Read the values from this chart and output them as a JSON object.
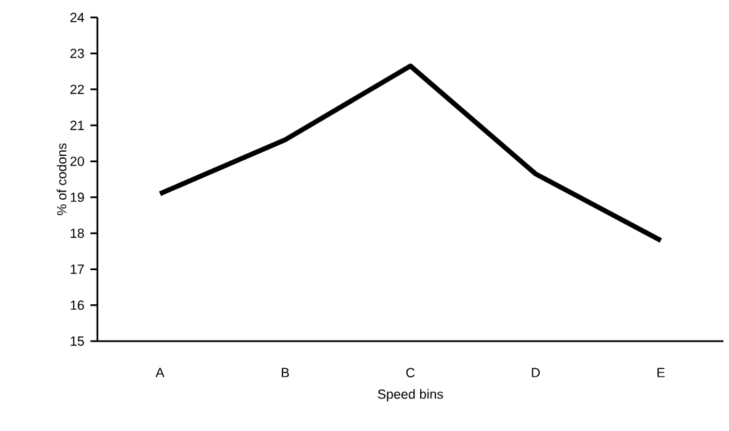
{
  "chart_data": {
    "type": "line",
    "xlabel": "Speed bins",
    "ylabel": "% of codons",
    "categories": [
      "A",
      "B",
      "C",
      "D",
      "E"
    ],
    "series": [
      {
        "color": "#000000",
        "values": [
          19.1,
          20.6,
          22.65,
          19.65,
          17.8
        ]
      }
    ],
    "ylim": [
      15,
      24
    ],
    "yticks": [
      15,
      16,
      17,
      18,
      19,
      20,
      21,
      22,
      23,
      24
    ],
    "grid": false,
    "marker": "none",
    "line_style": "solid"
  }
}
